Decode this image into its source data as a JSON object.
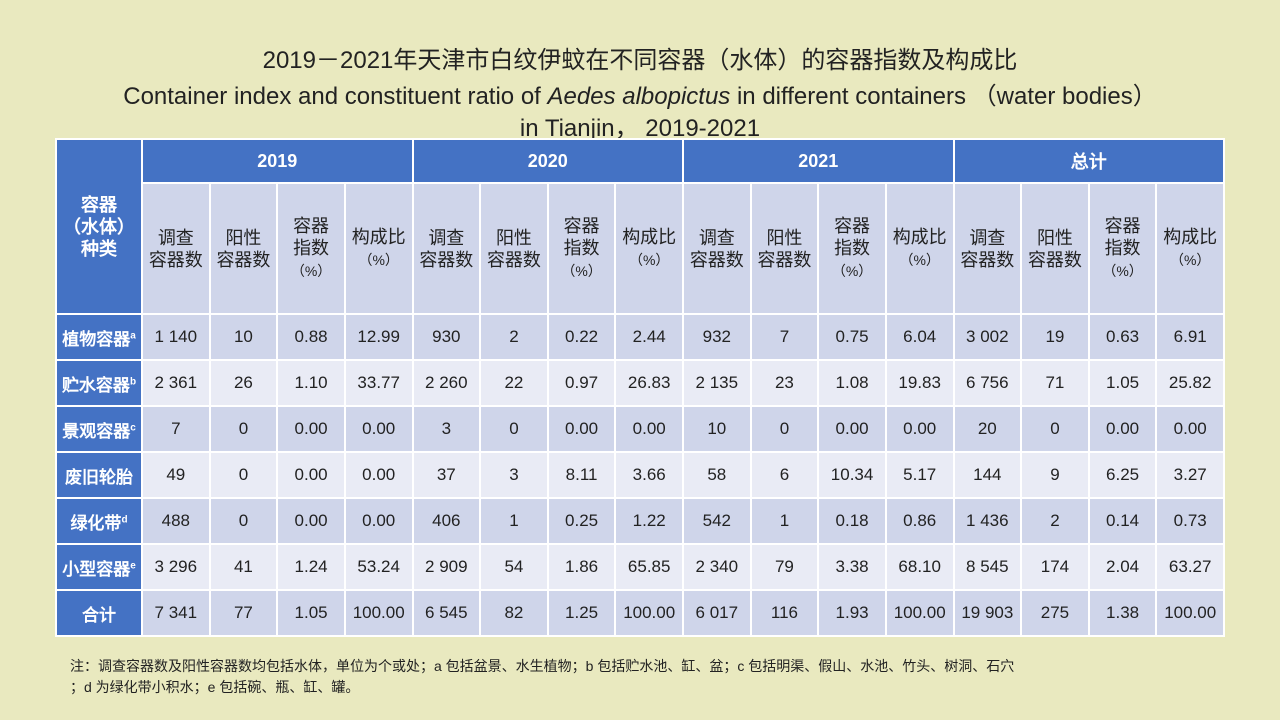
{
  "title_cn": "2019－2021年天津市白纹伊蚊在不同容器（水体）的容器指数及构成比",
  "title_en": {
    "parts": [
      "Container index and constituent ratio of ",
      "Aedes albopictus",
      " in different containers （water bodies）"
    ],
    "line2": "in Tianjin， 2019-2021"
  },
  "table": {
    "corner": [
      "容器",
      "（水体）",
      "种类"
    ],
    "years": [
      "2019",
      "2020",
      "2021",
      "总计"
    ],
    "subheaders": [
      [
        "调查",
        "容器数"
      ],
      [
        "阳性",
        "容器数"
      ],
      [
        "容器",
        "指数",
        "（%）"
      ],
      [
        "构成比",
        "（%）"
      ]
    ],
    "rows": [
      {
        "label": "植物容器",
        "sup": "a",
        "cells": [
          "1 140",
          "10",
          "0.88",
          "12.99",
          "930",
          "2",
          "0.22",
          "2.44",
          "932",
          "7",
          "0.75",
          "6.04",
          "3 002",
          "19",
          "0.63",
          "6.91"
        ]
      },
      {
        "label": "贮水容器",
        "sup": "b",
        "cells": [
          "2 361",
          "26",
          "1.10",
          "33.77",
          "2 260",
          "22",
          "0.97",
          "26.83",
          "2 135",
          "23",
          "1.08",
          "19.83",
          "6 756",
          "71",
          "1.05",
          "25.82"
        ]
      },
      {
        "label": "景观容器",
        "sup": "c",
        "cells": [
          "7",
          "0",
          "0.00",
          "0.00",
          "3",
          "0",
          "0.00",
          "0.00",
          "10",
          "0",
          "0.00",
          "0.00",
          "20",
          "0",
          "0.00",
          "0.00"
        ]
      },
      {
        "label": "废旧轮胎",
        "cells": [
          "49",
          "0",
          "0.00",
          "0.00",
          "37",
          "3",
          "8.11",
          "3.66",
          "58",
          "6",
          "10.34",
          "5.17",
          "144",
          "9",
          "6.25",
          "3.27"
        ]
      },
      {
        "label": "绿化带",
        "sup": "d",
        "cells": [
          "488",
          "0",
          "0.00",
          "0.00",
          "406",
          "1",
          "0.25",
          "1.22",
          "542",
          "1",
          "0.18",
          "0.86",
          "1 436",
          "2",
          "0.14",
          "0.73"
        ]
      },
      {
        "label": "小型容器",
        "sup": "e",
        "cells": [
          "3 296",
          "41",
          "1.24",
          "53.24",
          "2 909",
          "54",
          "1.86",
          "65.85",
          "2 340",
          "79",
          "3.38",
          "68.10",
          "8 545",
          "174",
          "2.04",
          "63.27"
        ]
      },
      {
        "label": "合计",
        "cells": [
          "7 341",
          "77",
          "1.05",
          "100.00",
          "6 545",
          "82",
          "1.25",
          "100.00",
          "6 017",
          "116",
          "1.93",
          "100.00",
          "19 903",
          "275",
          "1.38",
          "100.00"
        ]
      }
    ]
  },
  "note": [
    "注：调查容器数及阳性容器数均包括水体，单位为个或处；a 包括盆景、水生植物；b 包括贮水池、缸、盆；c 包括明渠、假山、水池、竹头、树洞、石穴",
    "；d 为绿化带小积水；e 包括碗、瓶、缸、罐。"
  ]
}
